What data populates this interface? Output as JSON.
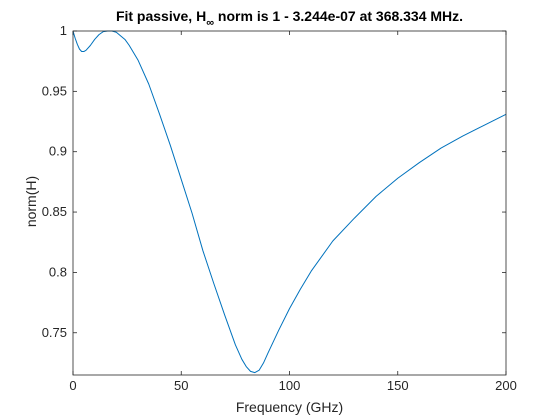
{
  "chart_data": {
    "type": "line",
    "title": {
      "prefix": "Fit passive, H",
      "subscript": "∞",
      "suffix": " norm is 1 - 3.244e-07 at 368.334 MHz."
    },
    "xlabel": "Frequency (GHz)",
    "ylabel": "norm(H)",
    "xlim": [
      0,
      200
    ],
    "ylim": [
      0.715,
      1.0
    ],
    "xticks": [
      0,
      50,
      100,
      150,
      200
    ],
    "xtick_labels": [
      "0",
      "50",
      "100",
      "150",
      "200"
    ],
    "yticks": [
      0.75,
      0.8,
      0.85,
      0.9,
      0.95,
      1.0
    ],
    "ytick_labels": [
      "0.75",
      "0.8",
      "0.85",
      "0.9",
      "0.95",
      "1"
    ],
    "grid": false,
    "line_color": "#0072bd",
    "series": [
      {
        "x": [
          0,
          1,
          2,
          3,
          4,
          5,
          6,
          8,
          10,
          12,
          14,
          16,
          18,
          19,
          20,
          22,
          24,
          26,
          28,
          30,
          35,
          40,
          45,
          50,
          55,
          60,
          65,
          70,
          75,
          78,
          80,
          82,
          84,
          86,
          88,
          90,
          95,
          100,
          105,
          110,
          120,
          130,
          140,
          150,
          160,
          170,
          180,
          190,
          200
        ],
        "y": [
          1.0,
          0.994,
          0.989,
          0.985,
          0.983,
          0.983,
          0.984,
          0.988,
          0.993,
          0.997,
          0.9995,
          1.0,
          1.0,
          0.9995,
          0.999,
          0.996,
          0.993,
          0.988,
          0.982,
          0.976,
          0.956,
          0.931,
          0.905,
          0.877,
          0.849,
          0.818,
          0.791,
          0.765,
          0.74,
          0.728,
          0.722,
          0.718,
          0.717,
          0.719,
          0.725,
          0.733,
          0.752,
          0.77,
          0.786,
          0.801,
          0.826,
          0.845,
          0.863,
          0.878,
          0.891,
          0.903,
          0.913,
          0.922,
          0.931
        ]
      }
    ]
  }
}
